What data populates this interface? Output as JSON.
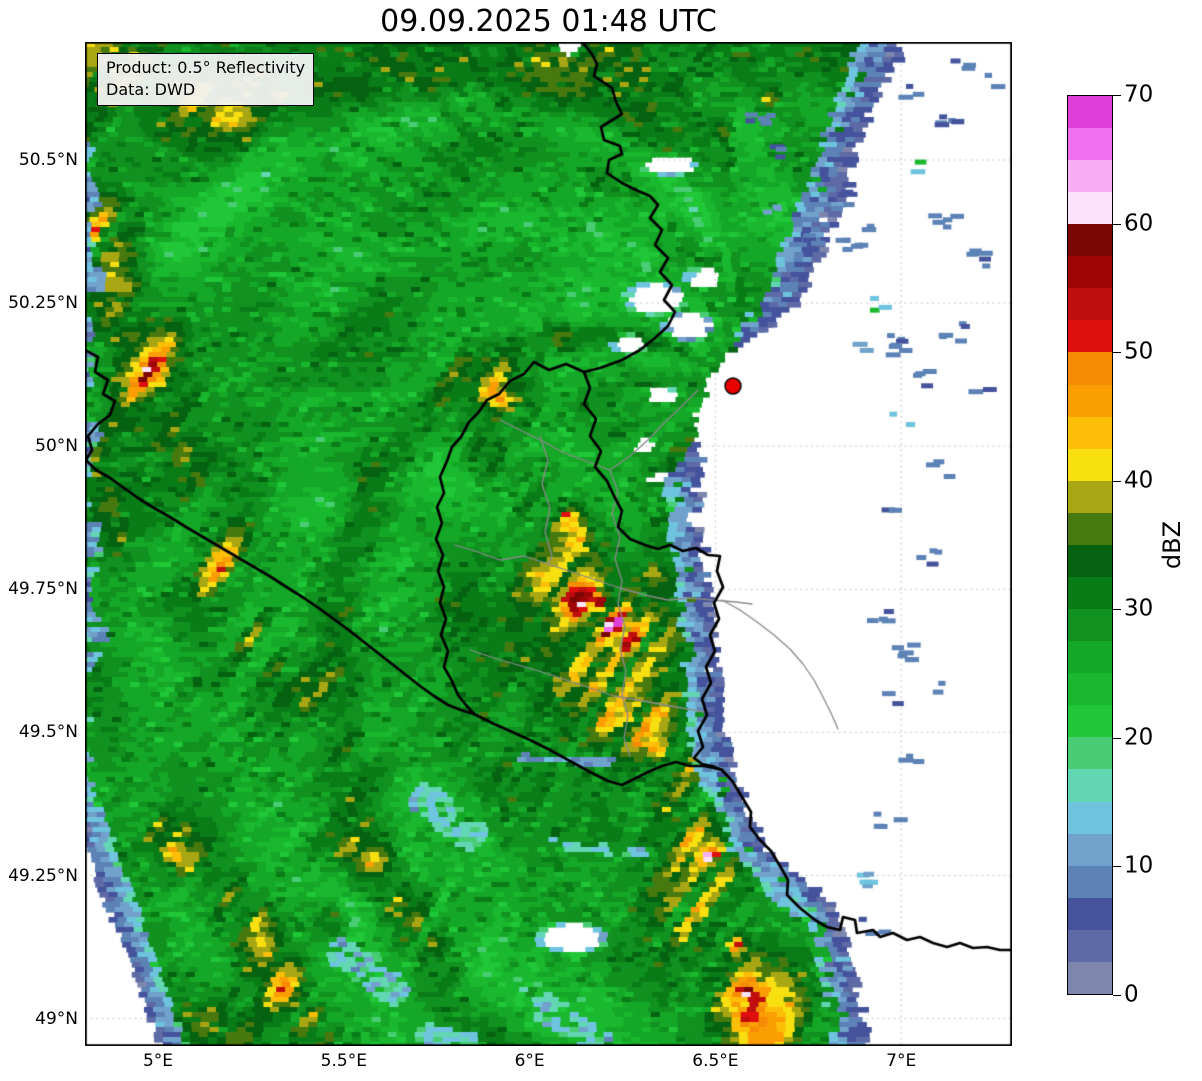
{
  "title": "09.09.2025 01:48 UTC",
  "annotation": {
    "line1": "Product: 0.5° Reflectivity",
    "line2": "Data: DWD"
  },
  "axes": {
    "x_ticks": [
      {
        "label": "5°E",
        "lon": 5.0
      },
      {
        "label": "5.5°E",
        "lon": 5.5
      },
      {
        "label": "6°E",
        "lon": 6.0
      },
      {
        "label": "6.5°E",
        "lon": 6.5
      },
      {
        "label": "7°E",
        "lon": 7.0
      }
    ],
    "y_ticks": [
      {
        "label": "50.5°N",
        "lat": 50.5
      },
      {
        "label": "50.25°N",
        "lat": 50.25
      },
      {
        "label": "50°N",
        "lat": 50.0
      },
      {
        "label": "49.75°N",
        "lat": 49.75
      },
      {
        "label": "49.5°N",
        "lat": 49.5
      },
      {
        "label": "49.25°N",
        "lat": 49.25
      },
      {
        "label": "49°N",
        "lat": 49.0
      }
    ]
  },
  "colorbar": {
    "label": "dBZ",
    "min": 0,
    "max": 70,
    "step": 2.5,
    "tick_values": [
      0,
      10,
      20,
      30,
      40,
      50,
      60,
      70
    ],
    "colors": [
      "#7e86ae",
      "#5e6aa5",
      "#45539c",
      "#5c82b6",
      "#70a2cc",
      "#6ec3de",
      "#63d6b4",
      "#48cd74",
      "#20c737",
      "#1ab82e",
      "#15a727",
      "#109120",
      "#0a7c17",
      "#056211",
      "#47790f",
      "#a8a713",
      "#f7df10",
      "#fcbe07",
      "#fa9e04",
      "#f68b04",
      "#e00f0f",
      "#c00d0d",
      "#9e0606",
      "#7c0505",
      "#fce3fa",
      "#f7aef2",
      "#f06ef0",
      "#df3fd8"
    ]
  },
  "radar_marker": {
    "color": "#e60000",
    "edge_color": "#000000"
  },
  "grid_color": "#c9c9c9",
  "chart_data": {
    "type": "heatmap",
    "title": "09.09.2025 01:48 UTC",
    "product": "0.5° Reflectivity",
    "source": "DWD",
    "units": "dBZ",
    "value_range": [
      0,
      70
    ],
    "lon_range_deg_e": [
      4.8,
      7.3
    ],
    "lat_range_deg_n": [
      48.95,
      50.71
    ],
    "colorbar_ticks": [
      0,
      10,
      20,
      30,
      40,
      50,
      60,
      70
    ],
    "description": "Radar reflectivity field: widespread stratiform precipitation (20-35 dBZ, green) west of the radar site, embedded convective bands of 40-55 dBZ (yellow/orange/red) over and south of Luxembourg, light echoes 5-15 dBZ (blue/cyan) fringing the precipitation shield to the northeast and southwest; echo-free (white) sector east of the radar marker."
  }
}
